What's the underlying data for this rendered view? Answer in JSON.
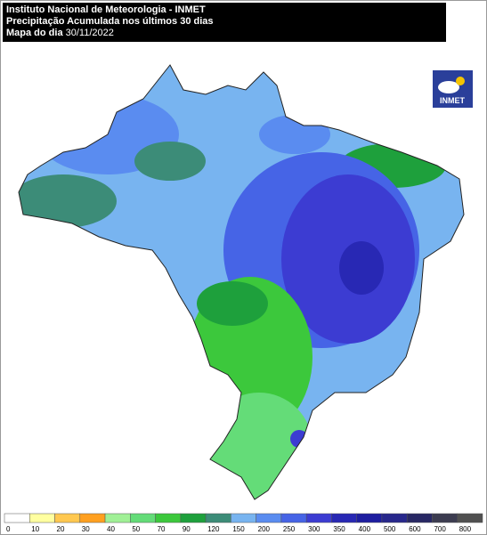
{
  "header": {
    "title": "Instituto Nacional de Meteorologia - INMET",
    "subtitle": "Precipitação Acumulada nos últimos 30 dias",
    "date_label": "Mapa do dia",
    "date": "30/11/2022"
  },
  "logo": {
    "text": "INMET"
  },
  "legend": {
    "bins": [
      0,
      10,
      20,
      30,
      40,
      50,
      70,
      90,
      120,
      150,
      200,
      250,
      300,
      350,
      400,
      500,
      600,
      700,
      800
    ],
    "colors": [
      "#ffffff",
      "#ffffa0",
      "#ffc850",
      "#ffa020",
      "#a0f096",
      "#64dc78",
      "#3cc83c",
      "#1ea03c",
      "#3c8c78",
      "#78b4f0",
      "#5a8cf0",
      "#4664e6",
      "#3c3cd2",
      "#2828b4",
      "#1e1ea0",
      "#28288c",
      "#282864",
      "#3c3c50",
      "#505050"
    ]
  }
}
